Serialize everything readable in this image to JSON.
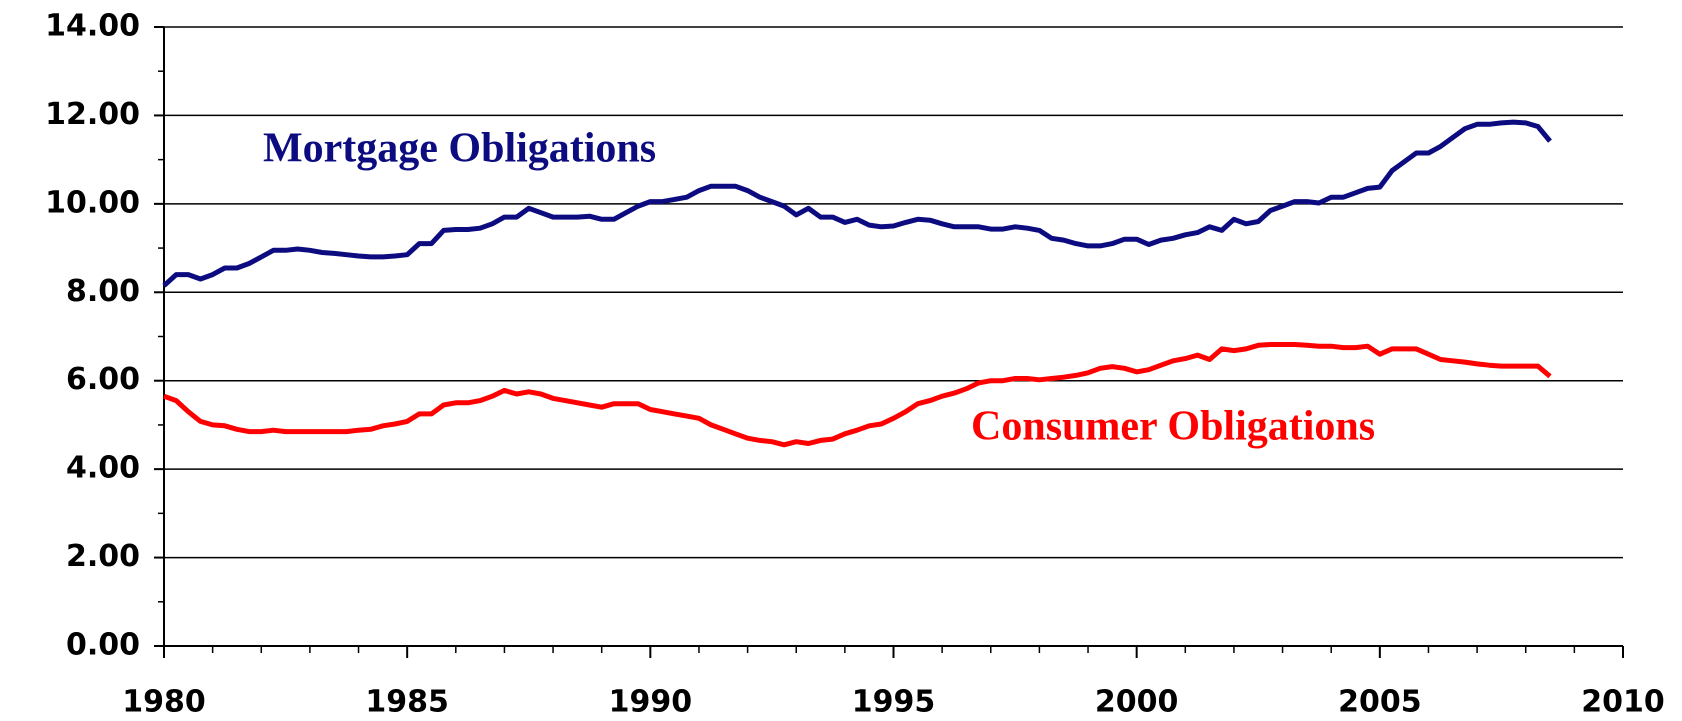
{
  "chart_data": {
    "type": "line",
    "x": [
      1980,
      1980.25,
      1980.5,
      1980.75,
      1981,
      1981.25,
      1981.5,
      1981.75,
      1982,
      1982.25,
      1982.5,
      1982.75,
      1983,
      1983.25,
      1983.5,
      1983.75,
      1984,
      1984.25,
      1984.5,
      1984.75,
      1985,
      1985.25,
      1985.5,
      1985.75,
      1986,
      1986.25,
      1986.5,
      1986.75,
      1987,
      1987.25,
      1987.5,
      1987.75,
      1988,
      1988.25,
      1988.5,
      1988.75,
      1989,
      1989.25,
      1989.5,
      1989.75,
      1990,
      1990.25,
      1990.5,
      1990.75,
      1991,
      1991.25,
      1991.5,
      1991.75,
      1992,
      1992.25,
      1992.5,
      1992.75,
      1993,
      1993.25,
      1993.5,
      1993.75,
      1994,
      1994.25,
      1994.5,
      1994.75,
      1995,
      1995.25,
      1995.5,
      1995.75,
      1996,
      1996.25,
      1996.5,
      1996.75,
      1997,
      1997.25,
      1997.5,
      1997.75,
      1998,
      1998.25,
      1998.5,
      1998.75,
      1999,
      1999.25,
      1999.5,
      1999.75,
      2000,
      2000.25,
      2000.5,
      2000.75,
      2001,
      2001.25,
      2001.5,
      2001.75,
      2002,
      2002.25,
      2002.5,
      2002.75,
      2003,
      2003.25,
      2003.5,
      2003.75,
      2004,
      2004.25,
      2004.5,
      2004.75,
      2005,
      2005.25,
      2005.5,
      2005.75,
      2006,
      2006.25,
      2006.5,
      2006.75,
      2007,
      2007.25,
      2007.5,
      2007.75,
      2008,
      2008.25,
      2008.5
    ],
    "series": [
      {
        "name": "Mortgage Obligations",
        "color": "#0c0c80",
        "values": [
          8.15,
          8.4,
          8.4,
          8.3,
          8.4,
          8.55,
          8.55,
          8.65,
          8.8,
          8.95,
          8.95,
          8.98,
          8.95,
          8.9,
          8.88,
          8.85,
          8.82,
          8.8,
          8.8,
          8.82,
          8.85,
          9.1,
          9.1,
          9.4,
          9.42,
          9.42,
          9.45,
          9.55,
          9.7,
          9.7,
          9.9,
          9.8,
          9.7,
          9.7,
          9.7,
          9.72,
          9.65,
          9.65,
          9.8,
          9.95,
          10.05,
          10.05,
          10.1,
          10.15,
          10.3,
          10.4,
          10.4,
          10.4,
          10.3,
          10.15,
          10.05,
          9.95,
          9.75,
          9.9,
          9.7,
          9.7,
          9.58,
          9.65,
          9.52,
          9.48,
          9.5,
          9.58,
          9.65,
          9.63,
          9.55,
          9.48,
          9.48,
          9.48,
          9.43,
          9.43,
          9.48,
          9.45,
          9.4,
          9.22,
          9.18,
          9.1,
          9.05,
          9.05,
          9.1,
          9.2,
          9.2,
          9.08,
          9.18,
          9.22,
          9.3,
          9.35,
          9.48,
          9.4,
          9.65,
          9.55,
          9.6,
          9.85,
          9.95,
          10.05,
          10.05,
          10.02,
          10.15,
          10.15,
          10.25,
          10.35,
          10.38,
          10.75,
          10.95,
          11.15,
          11.15,
          11.3,
          11.5,
          11.7,
          11.8,
          11.8,
          11.83,
          11.85,
          11.83,
          11.75,
          11.42
        ]
      },
      {
        "name": "Consumer Obligations",
        "color": "#ff0000",
        "values": [
          5.65,
          5.55,
          5.3,
          5.08,
          5.0,
          4.98,
          4.9,
          4.85,
          4.85,
          4.88,
          4.85,
          4.85,
          4.85,
          4.85,
          4.85,
          4.85,
          4.88,
          4.9,
          4.98,
          5.02,
          5.08,
          5.25,
          5.25,
          5.45,
          5.5,
          5.5,
          5.55,
          5.65,
          5.78,
          5.7,
          5.75,
          5.7,
          5.6,
          5.55,
          5.5,
          5.45,
          5.4,
          5.48,
          5.48,
          5.48,
          5.35,
          5.3,
          5.25,
          5.2,
          5.15,
          5.0,
          4.9,
          4.8,
          4.7,
          4.65,
          4.62,
          4.55,
          4.62,
          4.58,
          4.65,
          4.68,
          4.8,
          4.88,
          4.98,
          5.02,
          5.15,
          5.3,
          5.48,
          5.55,
          5.65,
          5.72,
          5.82,
          5.95,
          6.0,
          6.0,
          6.05,
          6.05,
          6.02,
          6.05,
          6.08,
          6.12,
          6.18,
          6.28,
          6.32,
          6.28,
          6.2,
          6.25,
          6.35,
          6.45,
          6.5,
          6.58,
          6.48,
          6.72,
          6.68,
          6.72,
          6.8,
          6.82,
          6.82,
          6.82,
          6.8,
          6.78,
          6.78,
          6.75,
          6.75,
          6.78,
          6.6,
          6.72,
          6.72,
          6.72,
          6.6,
          6.48,
          6.45,
          6.42,
          6.38,
          6.35,
          6.33,
          6.33,
          6.33,
          6.33,
          6.1
        ]
      }
    ],
    "xlim": [
      1980,
      2010
    ],
    "xticks": [
      1980,
      1985,
      1990,
      1995,
      2000,
      2005,
      2010
    ],
    "xminorticks": [
      1981,
      1982,
      1983,
      1984,
      1986,
      1987,
      1988,
      1989,
      1991,
      1992,
      1993,
      1994,
      1996,
      1997,
      1998,
      1999,
      2001,
      2002,
      2003,
      2004,
      2006,
      2007,
      2008,
      2009
    ],
    "ylim": [
      0,
      14
    ],
    "yticks": [
      {
        "value": 0,
        "label": "0.00"
      },
      {
        "value": 2,
        "label": "2.00"
      },
      {
        "value": 4,
        "label": "4.00"
      },
      {
        "value": 6,
        "label": "6.00"
      },
      {
        "value": 8,
        "label": "8.00"
      },
      {
        "value": 10,
        "label": "10.00"
      },
      {
        "value": 12,
        "label": "12.00"
      },
      {
        "value": 14,
        "label": "14.00"
      }
    ],
    "yminorticks": [
      1,
      3,
      5,
      7,
      9,
      11,
      13
    ],
    "grid": true
  }
}
